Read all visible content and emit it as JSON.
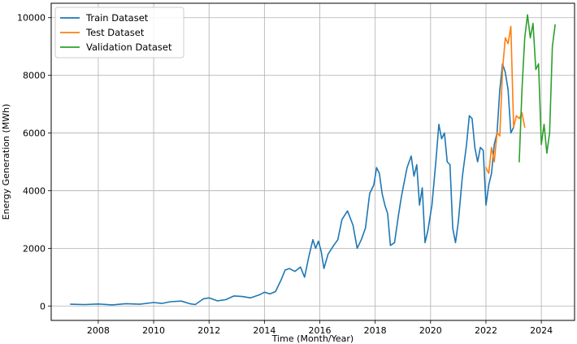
{
  "chart_data": {
    "type": "line",
    "title": "",
    "xlabel": "Time (Month/Year)",
    "ylabel": "Energy Generation (MWh)",
    "xlim": [
      2006.3,
      2025.2
    ],
    "ylim": [
      -500,
      10500
    ],
    "xticks": [
      2008,
      2010,
      2012,
      2014,
      2016,
      2018,
      2020,
      2022,
      2024
    ],
    "yticks": [
      0,
      2000,
      4000,
      6000,
      8000,
      10000
    ],
    "grid": true,
    "legend_position": "top-left",
    "series": [
      {
        "name": "Train Dataset",
        "color": "#1f77b4",
        "points": [
          [
            2007.0,
            60
          ],
          [
            2007.5,
            50
          ],
          [
            2008.0,
            70
          ],
          [
            2008.5,
            40
          ],
          [
            2009.0,
            80
          ],
          [
            2009.5,
            60
          ],
          [
            2010.0,
            120
          ],
          [
            2010.3,
            90
          ],
          [
            2010.6,
            150
          ],
          [
            2011.0,
            170
          ],
          [
            2011.3,
            80
          ],
          [
            2011.5,
            50
          ],
          [
            2011.8,
            250
          ],
          [
            2012.0,
            280
          ],
          [
            2012.3,
            180
          ],
          [
            2012.6,
            220
          ],
          [
            2012.9,
            350
          ],
          [
            2013.2,
            330
          ],
          [
            2013.5,
            280
          ],
          [
            2013.8,
            380
          ],
          [
            2014.0,
            480
          ],
          [
            2014.2,
            420
          ],
          [
            2014.4,
            500
          ],
          [
            2014.6,
            900
          ],
          [
            2014.75,
            1250
          ],
          [
            2014.9,
            1300
          ],
          [
            2015.1,
            1200
          ],
          [
            2015.3,
            1350
          ],
          [
            2015.45,
            1000
          ],
          [
            2015.6,
            1700
          ],
          [
            2015.75,
            2300
          ],
          [
            2015.85,
            2000
          ],
          [
            2015.95,
            2250
          ],
          [
            2016.05,
            1900
          ],
          [
            2016.15,
            1300
          ],
          [
            2016.3,
            1800
          ],
          [
            2016.5,
            2100
          ],
          [
            2016.65,
            2300
          ],
          [
            2016.8,
            3000
          ],
          [
            2017.0,
            3300
          ],
          [
            2017.2,
            2800
          ],
          [
            2017.35,
            2000
          ],
          [
            2017.5,
            2300
          ],
          [
            2017.65,
            2700
          ],
          [
            2017.8,
            3900
          ],
          [
            2017.95,
            4200
          ],
          [
            2018.05,
            4800
          ],
          [
            2018.15,
            4600
          ],
          [
            2018.25,
            3900
          ],
          [
            2018.35,
            3500
          ],
          [
            2018.45,
            3200
          ],
          [
            2018.55,
            2100
          ],
          [
            2018.7,
            2200
          ],
          [
            2018.85,
            3200
          ],
          [
            2018.95,
            3800
          ],
          [
            2019.05,
            4300
          ],
          [
            2019.15,
            4800
          ],
          [
            2019.3,
            5200
          ],
          [
            2019.4,
            4500
          ],
          [
            2019.5,
            4900
          ],
          [
            2019.6,
            3500
          ],
          [
            2019.7,
            4100
          ],
          [
            2019.8,
            2200
          ],
          [
            2019.9,
            2600
          ],
          [
            2020.05,
            3500
          ],
          [
            2020.2,
            5100
          ],
          [
            2020.3,
            6300
          ],
          [
            2020.4,
            5800
          ],
          [
            2020.5,
            6000
          ],
          [
            2020.6,
            5000
          ],
          [
            2020.7,
            4900
          ],
          [
            2020.8,
            2700
          ],
          [
            2020.9,
            2200
          ],
          [
            2021.0,
            2900
          ],
          [
            2021.15,
            4500
          ],
          [
            2021.3,
            5600
          ],
          [
            2021.4,
            6600
          ],
          [
            2021.5,
            6500
          ],
          [
            2021.6,
            5500
          ],
          [
            2021.7,
            5000
          ],
          [
            2021.8,
            5500
          ],
          [
            2021.9,
            5400
          ],
          [
            2022.0,
            3500
          ],
          [
            2022.1,
            4200
          ],
          [
            2022.2,
            4600
          ],
          [
            2022.3,
            5600
          ],
          [
            2022.4,
            6000
          ],
          [
            2022.5,
            7500
          ],
          [
            2022.6,
            8400
          ],
          [
            2022.7,
            8100
          ],
          [
            2022.8,
            7500
          ],
          [
            2022.9,
            6000
          ],
          [
            2023.0,
            6200
          ]
        ]
      },
      {
        "name": "Test Dataset",
        "color": "#ff7f0e",
        "points": [
          [
            2022.0,
            4800
          ],
          [
            2022.1,
            4600
          ],
          [
            2022.2,
            5500
          ],
          [
            2022.3,
            5000
          ],
          [
            2022.4,
            6000
          ],
          [
            2022.5,
            5900
          ],
          [
            2022.6,
            8200
          ],
          [
            2022.7,
            9300
          ],
          [
            2022.8,
            9100
          ],
          [
            2022.9,
            9700
          ],
          [
            2023.0,
            6200
          ],
          [
            2023.1,
            6600
          ],
          [
            2023.2,
            6500
          ],
          [
            2023.3,
            6700
          ],
          [
            2023.4,
            6200
          ]
        ]
      },
      {
        "name": "Validation Dataset",
        "color": "#2ca02c",
        "points": [
          [
            2023.2,
            5000
          ],
          [
            2023.3,
            7500
          ],
          [
            2023.4,
            9300
          ],
          [
            2023.5,
            10100
          ],
          [
            2023.6,
            9300
          ],
          [
            2023.7,
            9800
          ],
          [
            2023.8,
            8200
          ],
          [
            2023.9,
            8400
          ],
          [
            2024.0,
            5600
          ],
          [
            2024.1,
            6300
          ],
          [
            2024.2,
            5300
          ],
          [
            2024.3,
            6000
          ],
          [
            2024.4,
            9000
          ],
          [
            2024.5,
            9750
          ]
        ]
      }
    ]
  }
}
